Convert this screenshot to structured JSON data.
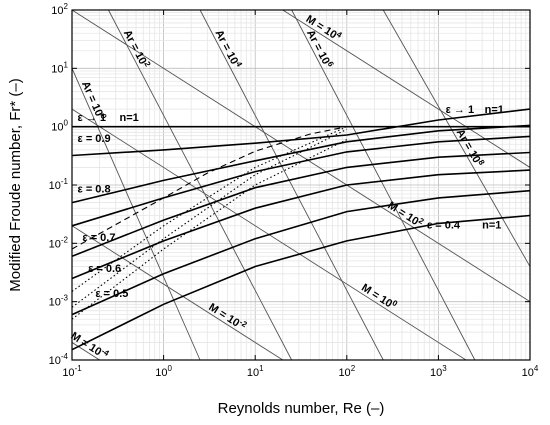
{
  "chart_data": {
    "type": "line",
    "xlabel": "Reynolds number, Re (–)",
    "ylabel": "Modified Froude number, Fr* (–)",
    "xscale": "log",
    "yscale": "log",
    "xlim": [
      0.1,
      10000
    ],
    "ylim": [
      0.0001,
      100
    ],
    "grid": true,
    "x_ticks": [
      {
        "b": "10",
        "e": "-1",
        "v": 0.1
      },
      {
        "b": "10",
        "e": "0",
        "v": 1
      },
      {
        "b": "10",
        "e": "1",
        "v": 10
      },
      {
        "b": "10",
        "e": "2",
        "v": 100
      },
      {
        "b": "10",
        "e": "3",
        "v": 1000
      },
      {
        "b": "10",
        "e": "4",
        "v": 10000
      }
    ],
    "y_ticks": [
      {
        "b": "10",
        "e": "-4",
        "v": 0.0001
      },
      {
        "b": "10",
        "e": "-3",
        "v": 0.001
      },
      {
        "b": "10",
        "e": "-2",
        "v": 0.01
      },
      {
        "b": "10",
        "e": "-1",
        "v": 0.1
      },
      {
        "b": "10",
        "e": "0",
        "v": 1
      },
      {
        "b": "10",
        "e": "1",
        "v": 10
      },
      {
        "b": "10",
        "e": "2",
        "v": 100
      }
    ],
    "series": [
      {
        "x": [
          0.1,
          10000
        ],
        "y": [
          1.0,
          1.0
        ],
        "style": "solid"
      },
      {
        "x": [
          0.1,
          1,
          10,
          100,
          1000,
          10000
        ],
        "y": [
          0.32,
          0.4,
          0.52,
          0.72,
          1.3,
          2.0
        ],
        "style": "solid"
      },
      {
        "x": [
          0.1,
          1,
          10,
          100,
          1000,
          10000
        ],
        "y": [
          0.05,
          0.12,
          0.26,
          0.55,
          0.85,
          1.05
        ],
        "style": "solid"
      },
      {
        "x": [
          0.1,
          1,
          10,
          100,
          1000,
          10000
        ],
        "y": [
          0.02,
          0.06,
          0.17,
          0.37,
          0.55,
          0.68
        ],
        "style": "solid"
      },
      {
        "x": [
          0.1,
          1,
          10,
          100,
          1000,
          10000
        ],
        "y": [
          0.006,
          0.025,
          0.09,
          0.2,
          0.3,
          0.36
        ],
        "style": "solid"
      },
      {
        "x": [
          0.1,
          1,
          10,
          100,
          1000,
          10000
        ],
        "y": [
          0.0025,
          0.011,
          0.04,
          0.1,
          0.15,
          0.18
        ],
        "style": "solid"
      },
      {
        "x": [
          0.1,
          1,
          10,
          100,
          1000,
          10000
        ],
        "y": [
          0.0006,
          0.003,
          0.012,
          0.035,
          0.06,
          0.08
        ],
        "style": "solid"
      },
      {
        "x": [
          0.1,
          1,
          10,
          100,
          1000,
          10000
        ],
        "y": [
          0.00015,
          0.0009,
          0.004,
          0.011,
          0.022,
          0.03
        ],
        "style": "solid"
      },
      {
        "x": [
          0.1,
          1,
          3,
          10,
          40,
          100
        ],
        "y": [
          0.008,
          0.06,
          0.16,
          0.38,
          0.75,
          1.0
        ],
        "style": "dashed"
      },
      {
        "x": [
          0.1,
          1,
          10,
          100
        ],
        "y": [
          0.0015,
          0.02,
          0.2,
          1.0
        ],
        "style": "dotted"
      },
      {
        "x": [
          0.1,
          1,
          10,
          100
        ],
        "y": [
          0.0008,
          0.012,
          0.15,
          0.9
        ],
        "style": "dotted"
      },
      {
        "x": [
          0.1,
          1,
          10,
          100
        ],
        "y": [
          0.0005,
          0.008,
          0.1,
          0.6
        ],
        "style": "dotted"
      }
    ],
    "ar_lines": [
      {
        "label_base": "Ar = 10",
        "label_exp": "0",
        "x": [
          0.1,
          2.5
        ],
        "y": [
          10,
          0.0001
        ]
      },
      {
        "label_base": "Ar = 10",
        "label_exp": "2",
        "x": [
          0.25,
          25
        ],
        "y": [
          100,
          0.0001
        ]
      },
      {
        "label_base": "Ar = 10",
        "label_exp": "4",
        "x": [
          2.5,
          250
        ],
        "y": [
          100,
          0.0001
        ]
      },
      {
        "label_base": "Ar = 10",
        "label_exp": "6",
        "x": [
          25,
          2500
        ],
        "y": [
          100,
          0.0001
        ]
      },
      {
        "label_base": "Ar = 10",
        "label_exp": "8",
        "x": [
          250,
          10000
        ],
        "y": [
          100,
          0.004
        ]
      }
    ],
    "m_lines": [
      {
        "label_base": "M = 10",
        "label_exp": "-4",
        "x": [
          0.1,
          0.2
        ],
        "y": [
          0.0002,
          0.0001
        ]
      },
      {
        "label_base": "M = 10",
        "label_exp": "-2",
        "x": [
          0.1,
          20
        ],
        "y": [
          0.02,
          0.0001
        ]
      },
      {
        "label_base": "M = 10",
        "label_exp": "0",
        "x": [
          0.1,
          2000
        ],
        "y": [
          2,
          0.0001
        ]
      },
      {
        "label_base": "M = 10",
        "label_exp": "2",
        "x": [
          0.1,
          10000
        ],
        "y": [
          100,
          0.001
        ]
      },
      {
        "label_base": "M = 10",
        "label_exp": "4",
        "x": [
          20,
          10000
        ],
        "y": [
          100,
          0.2
        ]
      }
    ],
    "eps_labels": [
      {
        "text": "ε → 1",
        "x": 0.115,
        "y": 1.25
      },
      {
        "text": "n=1",
        "x": 0.33,
        "y": 1.25
      },
      {
        "text": "ε = 0.9",
        "x": 0.115,
        "y": 0.55
      },
      {
        "text": "ε = 0.8",
        "x": 0.115,
        "y": 0.075
      },
      {
        "text": "ε = 0.7",
        "x": 0.13,
        "y": 0.011
      },
      {
        "text": "ε = 0.6",
        "x": 0.15,
        "y": 0.0032
      },
      {
        "text": "ε = 0.5",
        "x": 0.18,
        "y": 0.0012
      },
      {
        "text": "ε → 1",
        "x": 1200,
        "y": 1.7
      },
      {
        "text": "n=1",
        "x": 3200,
        "y": 1.7
      },
      {
        "text": "ε = 0.4",
        "x": 750,
        "y": 0.018
      },
      {
        "text": "n=1",
        "x": 3000,
        "y": 0.018
      }
    ]
  }
}
